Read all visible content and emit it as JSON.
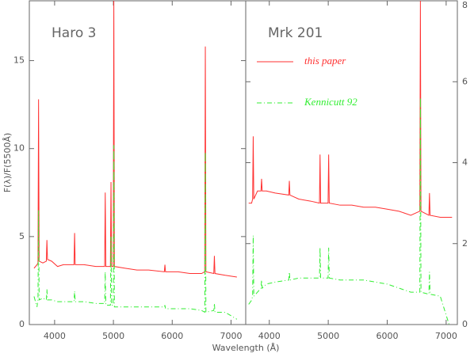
{
  "xlabel": "Wavelength (Å)",
  "chart_data": [
    {
      "type": "line",
      "title": "Haro 3",
      "ylabel": "F(λ)/F(5500Å)",
      "x": [
        3650,
        3700,
        3717,
        3727,
        3737,
        3800,
        3859,
        3869,
        3879,
        3950,
        4050,
        4150,
        4330,
        4340,
        4350,
        4500,
        4700,
        4851,
        4861,
        4871,
        4949,
        4959,
        4969,
        4997,
        5007,
        5017,
        5200,
        5400,
        5600,
        5866,
        5876,
        5886,
        6100,
        6300,
        6500,
        6553,
        6563,
        6573,
        6707,
        6717,
        6727,
        6900,
        7100
      ],
      "series": [
        {
          "color": "#ff3030",
          "values": [
            3.2,
            3.4,
            3.5,
            12.8,
            3.6,
            3.5,
            3.6,
            4.8,
            3.7,
            3.6,
            3.3,
            3.4,
            3.4,
            5.2,
            3.4,
            3.4,
            3.3,
            3.3,
            7.5,
            3.3,
            3.3,
            8.1,
            3.3,
            3.3,
            18.4,
            3.3,
            3.2,
            3.1,
            3.1,
            3.0,
            3.4,
            3.0,
            3.0,
            2.9,
            2.9,
            3.0,
            15.8,
            3.0,
            2.9,
            3.9,
            2.9,
            2.8,
            2.7
          ]
        },
        {
          "color": "#33ee33",
          "dashed": true,
          "values": [
            1.6,
            1.0,
            1.4,
            6.5,
            1.4,
            1.5,
            1.4,
            2.0,
            1.4,
            1.4,
            1.3,
            1.3,
            1.3,
            1.9,
            1.3,
            1.3,
            1.2,
            1.2,
            3.0,
            1.1,
            1.1,
            5.0,
            1.1,
            1.1,
            10.2,
            1.0,
            1.0,
            1.0,
            1.0,
            1.0,
            1.1,
            0.9,
            0.9,
            0.9,
            0.8,
            0.7,
            9.8,
            0.7,
            0.8,
            1.2,
            0.7,
            0.7,
            0.3
          ]
        }
      ],
      "xlim": [
        3570,
        7250
      ],
      "xticks": [
        4000,
        5000,
        6000,
        7000
      ],
      "ylim": [
        0,
        18.4
      ],
      "yticks": [
        0,
        5,
        10,
        15
      ],
      "yaxis_side": "left"
    },
    {
      "type": "line",
      "title": "Mrk 201",
      "x": [
        3650,
        3700,
        3717,
        3727,
        3737,
        3800,
        3859,
        3869,
        3879,
        3950,
        4100,
        4330,
        4340,
        4350,
        4500,
        4700,
        4851,
        4861,
        4871,
        4997,
        5007,
        5017,
        5200,
        5400,
        5600,
        5800,
        6000,
        6200,
        6400,
        6553,
        6563,
        6573,
        6707,
        6717,
        6727,
        6900,
        7050,
        7100
      ],
      "series": [
        {
          "name": "this paper",
          "color": "#ff3030",
          "values": [
            3.0,
            3.0,
            3.1,
            4.65,
            3.1,
            3.3,
            3.3,
            3.6,
            3.3,
            3.3,
            3.25,
            3.2,
            3.55,
            3.2,
            3.1,
            3.05,
            3.0,
            4.2,
            3.0,
            3.0,
            4.2,
            3.0,
            2.95,
            2.95,
            2.9,
            2.9,
            2.85,
            2.8,
            2.7,
            2.8,
            8.0,
            2.8,
            2.7,
            3.25,
            2.7,
            2.65,
            2.65,
            2.65
          ]
        },
        {
          "name": "Kennicutt 92",
          "color": "#33ee33",
          "dashed": true,
          "values": [
            0.5,
            0.6,
            0.7,
            2.2,
            0.7,
            0.8,
            0.9,
            1.1,
            0.9,
            1.0,
            1.05,
            1.1,
            1.3,
            1.1,
            1.15,
            1.15,
            1.15,
            1.9,
            1.15,
            1.15,
            1.9,
            1.15,
            1.1,
            1.1,
            1.1,
            1.05,
            1.0,
            0.9,
            0.8,
            0.8,
            5.6,
            0.8,
            0.75,
            1.3,
            0.75,
            0.7,
            0.0,
            null
          ]
        }
      ],
      "xlim": [
        3600,
        7190
      ],
      "xticks": [
        4000,
        5000,
        6000,
        7000
      ],
      "ylim": [
        0,
        8
      ],
      "yticks": [
        0,
        2,
        4,
        6,
        8
      ],
      "yaxis_side": "right"
    }
  ]
}
